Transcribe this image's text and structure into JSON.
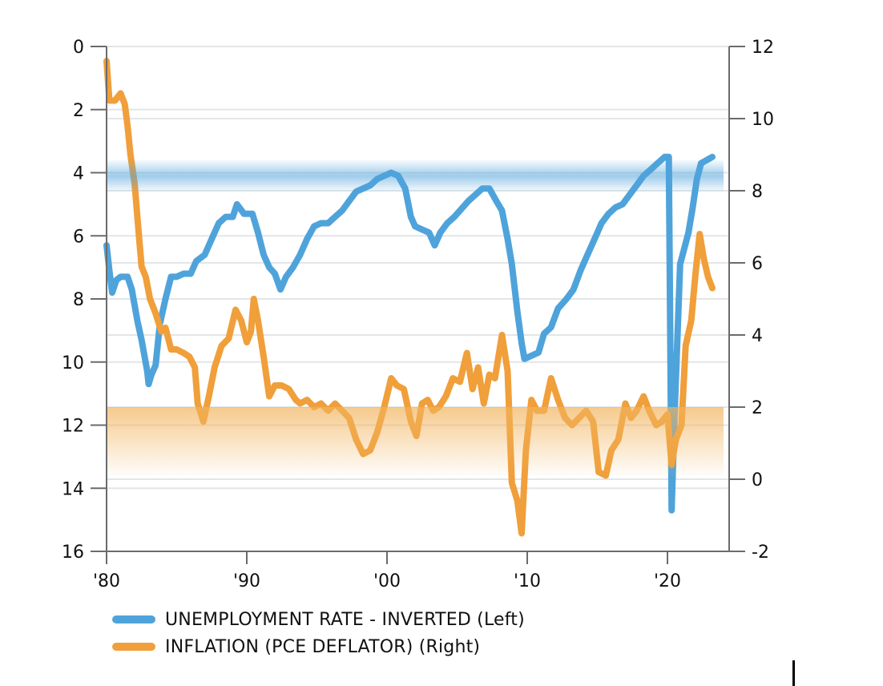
{
  "chart_data": {
    "type": "line",
    "title": "",
    "xlabel": "",
    "ylabel_left": "",
    "ylabel_right": "",
    "x_ticks": [
      {
        "value": 1980,
        "label": "'80"
      },
      {
        "value": 1990,
        "label": "'90"
      },
      {
        "value": 2000,
        "label": "'00"
      },
      {
        "value": 2010,
        "label": "'10"
      },
      {
        "value": 2020,
        "label": "'20"
      }
    ],
    "xlim": [
      1980,
      2024.4
    ],
    "y_left": {
      "inverted": true,
      "ylim": [
        0,
        16
      ],
      "ticks": [
        "0",
        "2",
        "4",
        "6",
        "8",
        "10",
        "12",
        "14",
        "16"
      ],
      "tick_values": [
        0,
        2,
        4,
        6,
        8,
        10,
        12,
        14,
        16
      ]
    },
    "y_right": {
      "ylim": [
        -2,
        12
      ],
      "ticks": [
        "12",
        "10",
        "8",
        "6",
        "4",
        "2",
        "0",
        "-2"
      ],
      "tick_values": [
        12,
        10,
        8,
        6,
        4,
        2,
        0,
        -2
      ]
    },
    "grid": true,
    "bands": [
      {
        "name": "unemployment-target-band",
        "axis": "left",
        "from": 3.6,
        "to": 4.6,
        "color": "#4FA3DB"
      },
      {
        "name": "inflation-target-band",
        "axis": "right",
        "from": 0.1,
        "to": 2.0,
        "color": "#F2B35C"
      }
    ],
    "legend": {
      "placement": "bottom-left",
      "entries": [
        {
          "label": "UNEMPLOYMENT RATE - INVERTED (Left)",
          "color": "#4FA3DB"
        },
        {
          "label": "INFLATION (PCE DEFLATOR) (Right)",
          "color": "#F09F3A"
        }
      ]
    },
    "series": [
      {
        "name": "UNEMPLOYMENT RATE - INVERTED (Left)",
        "axis": "left",
        "color": "#4FA3DB",
        "x": [
          1980.0,
          1980.2,
          1980.4,
          1980.7,
          1981.0,
          1981.5,
          1981.8,
          1982.2,
          1982.5,
          1982.9,
          1983.0,
          1983.2,
          1983.5,
          1983.8,
          1984.2,
          1984.6,
          1985.0,
          1985.5,
          1986.0,
          1986.4,
          1987.0,
          1987.5,
          1988.0,
          1988.5,
          1989.0,
          1989.3,
          1989.8,
          1990.4,
          1990.8,
          1991.2,
          1991.6,
          1992.0,
          1992.4,
          1992.8,
          1993.3,
          1993.8,
          1994.3,
          1994.8,
          1995.3,
          1995.8,
          1996.3,
          1996.8,
          1997.3,
          1997.8,
          1998.3,
          1998.8,
          1999.3,
          1999.8,
          2000.3,
          2000.8,
          2001.3,
          2001.7,
          2002.0,
          2002.5,
          2003.0,
          2003.4,
          2003.8,
          2004.3,
          2004.8,
          2005.4,
          2005.8,
          2006.3,
          2006.8,
          2007.3,
          2007.8,
          2008.2,
          2008.6,
          2008.9,
          2009.3,
          2009.6,
          2009.8,
          2010.3,
          2010.8,
          2011.2,
          2011.7,
          2012.2,
          2012.8,
          2013.3,
          2013.8,
          2014.3,
          2014.8,
          2015.3,
          2015.8,
          2016.3,
          2016.8,
          2017.3,
          2017.8,
          2018.3,
          2018.8,
          2019.3,
          2019.8,
          2020.1,
          2020.3,
          2020.5,
          2020.7,
          2020.9,
          2021.2,
          2021.5,
          2021.8,
          2022.1,
          2022.4,
          2022.8,
          2023.2
        ],
        "values": [
          6.3,
          7.1,
          7.8,
          7.4,
          7.3,
          7.3,
          7.7,
          8.7,
          9.3,
          10.3,
          10.7,
          10.4,
          10.1,
          8.8,
          8.0,
          7.3,
          7.3,
          7.2,
          7.2,
          6.8,
          6.6,
          6.1,
          5.6,
          5.4,
          5.4,
          5.0,
          5.3,
          5.3,
          5.9,
          6.6,
          7.0,
          7.2,
          7.7,
          7.3,
          7.0,
          6.6,
          6.1,
          5.7,
          5.6,
          5.6,
          5.4,
          5.2,
          4.9,
          4.6,
          4.5,
          4.4,
          4.2,
          4.1,
          4.0,
          4.1,
          4.5,
          5.4,
          5.7,
          5.8,
          5.9,
          6.3,
          5.9,
          5.6,
          5.4,
          5.1,
          4.9,
          4.7,
          4.5,
          4.5,
          4.9,
          5.2,
          6.1,
          6.9,
          8.4,
          9.4,
          9.9,
          9.8,
          9.7,
          9.1,
          8.9,
          8.3,
          8.0,
          7.7,
          7.1,
          6.6,
          6.1,
          5.6,
          5.3,
          5.1,
          5.0,
          4.7,
          4.4,
          4.1,
          3.9,
          3.7,
          3.5,
          3.5,
          14.7,
          11.8,
          9.4,
          6.9,
          6.4,
          5.9,
          5.1,
          4.2,
          3.7,
          3.6,
          3.5
        ]
      },
      {
        "name": "INFLATION (PCE DEFLATOR) (Right)",
        "axis": "right",
        "color": "#F09F3A",
        "x": [
          1980.0,
          1980.2,
          1980.6,
          1981.0,
          1981.3,
          1981.5,
          1981.7,
          1982.0,
          1982.3,
          1982.5,
          1982.8,
          1983.1,
          1983.5,
          1983.9,
          1984.2,
          1984.6,
          1985.0,
          1985.5,
          1985.9,
          1986.3,
          1986.5,
          1986.9,
          1987.3,
          1987.7,
          1988.2,
          1988.7,
          1989.2,
          1989.6,
          1990.0,
          1990.3,
          1990.5,
          1990.8,
          1991.2,
          1991.6,
          1992.0,
          1992.5,
          1993.0,
          1993.5,
          1993.8,
          1994.3,
          1994.8,
          1995.3,
          1995.8,
          1996.3,
          1996.8,
          1997.3,
          1997.8,
          1998.3,
          1998.8,
          1999.3,
          1999.8,
          2000.3,
          2000.7,
          2001.2,
          2001.7,
          2002.1,
          2002.5,
          2002.9,
          2003.3,
          2003.7,
          2004.2,
          2004.7,
          2005.2,
          2005.7,
          2006.1,
          2006.5,
          2006.9,
          2007.3,
          2007.7,
          2008.2,
          2008.6,
          2008.9,
          2009.3,
          2009.6,
          2009.9,
          2010.3,
          2010.7,
          2011.2,
          2011.7,
          2012.2,
          2012.7,
          2013.2,
          2013.7,
          2014.2,
          2014.7,
          2015.1,
          2015.6,
          2016.0,
          2016.5,
          2017.0,
          2017.4,
          2017.8,
          2018.3,
          2018.7,
          2019.2,
          2019.6,
          2020.0,
          2020.3,
          2020.6,
          2021.0,
          2021.3,
          2021.7,
          2022.0,
          2022.3,
          2022.6,
          2022.9,
          2023.2
        ],
        "values": [
          11.6,
          10.5,
          10.5,
          10.7,
          10.4,
          9.8,
          9.0,
          8.2,
          6.8,
          5.9,
          5.6,
          5.0,
          4.6,
          4.1,
          4.2,
          3.6,
          3.6,
          3.5,
          3.4,
          3.1,
          2.1,
          1.6,
          2.3,
          3.1,
          3.7,
          3.9,
          4.7,
          4.4,
          3.8,
          4.1,
          5.0,
          4.4,
          3.4,
          2.3,
          2.6,
          2.6,
          2.5,
          2.2,
          2.1,
          2.2,
          2.0,
          2.1,
          1.9,
          2.1,
          1.9,
          1.7,
          1.1,
          0.7,
          0.8,
          1.3,
          2.0,
          2.8,
          2.6,
          2.5,
          1.6,
          1.2,
          2.1,
          2.2,
          1.9,
          2.0,
          2.3,
          2.8,
          2.7,
          3.5,
          2.5,
          3.1,
          2.1,
          2.9,
          2.8,
          4.0,
          3.0,
          -0.1,
          -0.6,
          -1.5,
          0.8,
          2.2,
          1.9,
          1.9,
          2.8,
          2.2,
          1.7,
          1.5,
          1.7,
          1.9,
          1.6,
          0.2,
          0.1,
          0.8,
          1.1,
          2.1,
          1.7,
          1.9,
          2.3,
          1.9,
          1.5,
          1.6,
          1.8,
          0.4,
          1.1,
          1.5,
          3.7,
          4.4,
          5.7,
          6.8,
          6.1,
          5.6,
          5.3
        ]
      }
    ]
  }
}
